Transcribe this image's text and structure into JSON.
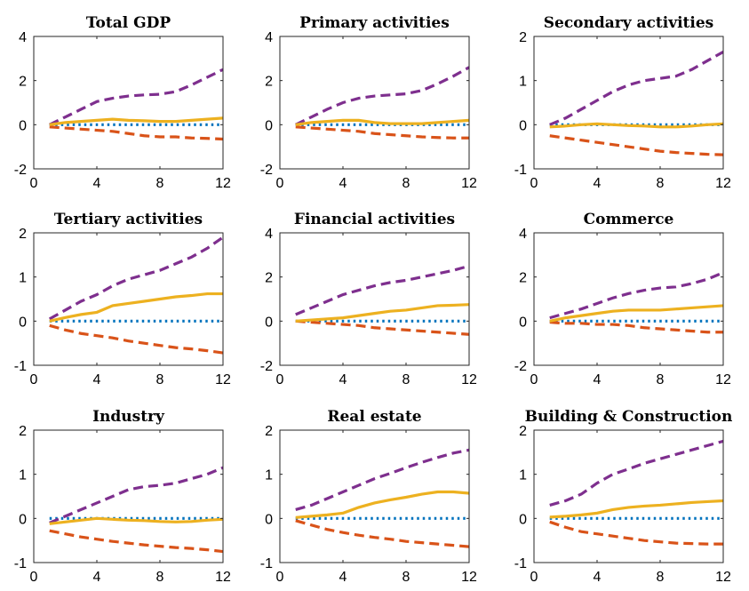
{
  "chart_data": [
    {
      "type": "line",
      "title": "Total GDP",
      "x": [
        1,
        2,
        3,
        4,
        5,
        6,
        7,
        8,
        9,
        10,
        11,
        12
      ],
      "xlim": [
        0,
        12
      ],
      "xticks": [
        0,
        4,
        8,
        12
      ],
      "ylim": [
        -2,
        4
      ],
      "yticks": [
        -2,
        0,
        2,
        4
      ],
      "series": [
        {
          "values": [
            0.0,
            0.35,
            0.7,
            1.05,
            1.2,
            1.3,
            1.35,
            1.38,
            1.5,
            1.8,
            2.15,
            2.5
          ]
        },
        {
          "values": [
            0.0,
            0.1,
            0.15,
            0.2,
            0.25,
            0.2,
            0.18,
            0.15,
            0.15,
            0.2,
            0.25,
            0.3
          ]
        },
        {
          "values": [
            -0.1,
            -0.15,
            -0.2,
            -0.25,
            -0.3,
            -0.4,
            -0.5,
            -0.55,
            -0.55,
            -0.6,
            -0.62,
            -0.65
          ]
        },
        {
          "values": [
            0,
            0,
            0,
            0,
            0,
            0,
            0,
            0,
            0,
            0,
            0,
            0
          ]
        }
      ]
    },
    {
      "type": "line",
      "title": "Primary activities",
      "x": [
        1,
        2,
        3,
        4,
        5,
        6,
        7,
        8,
        9,
        10,
        11,
        12
      ],
      "xlim": [
        0,
        12
      ],
      "xticks": [
        0,
        4,
        8,
        12
      ],
      "ylim": [
        -2,
        4
      ],
      "yticks": [
        -2,
        0,
        2,
        4
      ],
      "series": [
        {
          "values": [
            0.0,
            0.35,
            0.7,
            1.0,
            1.2,
            1.3,
            1.35,
            1.4,
            1.55,
            1.85,
            2.2,
            2.6
          ]
        },
        {
          "values": [
            0.0,
            0.1,
            0.15,
            0.2,
            0.2,
            0.1,
            0.05,
            0.05,
            0.05,
            0.1,
            0.15,
            0.2
          ]
        },
        {
          "values": [
            -0.1,
            -0.15,
            -0.2,
            -0.25,
            -0.3,
            -0.4,
            -0.45,
            -0.5,
            -0.55,
            -0.58,
            -0.6,
            -0.6
          ]
        },
        {
          "values": [
            0,
            0,
            0,
            0,
            0,
            0,
            0,
            0,
            0,
            0,
            0,
            0
          ]
        }
      ]
    },
    {
      "type": "line",
      "title": "Secondary activities",
      "x": [
        1,
        2,
        3,
        4,
        5,
        6,
        7,
        8,
        9,
        10,
        11,
        12
      ],
      "xlim": [
        0,
        12
      ],
      "xticks": [
        0,
        4,
        8,
        12
      ],
      "ylim": [
        -1,
        2
      ],
      "yticks": [
        -1,
        0,
        1,
        2
      ],
      "series": [
        {
          "values": [
            0.0,
            0.15,
            0.35,
            0.55,
            0.75,
            0.9,
            1.0,
            1.05,
            1.1,
            1.25,
            1.45,
            1.65
          ]
        },
        {
          "values": [
            -0.05,
            -0.03,
            0.0,
            0.02,
            0.0,
            -0.02,
            -0.03,
            -0.05,
            -0.05,
            -0.03,
            0.0,
            0.02
          ]
        },
        {
          "values": [
            -0.25,
            -0.3,
            -0.35,
            -0.4,
            -0.45,
            -0.5,
            -0.55,
            -0.6,
            -0.63,
            -0.65,
            -0.67,
            -0.68
          ]
        },
        {
          "values": [
            0,
            0,
            0,
            0,
            0,
            0,
            0,
            0,
            0,
            0,
            0,
            0
          ]
        }
      ]
    },
    {
      "type": "line",
      "title": "Tertiary activities",
      "x": [
        1,
        2,
        3,
        4,
        5,
        6,
        7,
        8,
        9,
        10,
        11,
        12
      ],
      "xlim": [
        0,
        12
      ],
      "xticks": [
        0,
        4,
        8,
        12
      ],
      "ylim": [
        -1,
        2
      ],
      "yticks": [
        -1,
        0,
        1,
        2
      ],
      "series": [
        {
          "values": [
            0.05,
            0.25,
            0.45,
            0.6,
            0.8,
            0.95,
            1.05,
            1.15,
            1.3,
            1.45,
            1.65,
            1.9
          ]
        },
        {
          "values": [
            0.0,
            0.08,
            0.15,
            0.2,
            0.35,
            0.4,
            0.45,
            0.5,
            0.55,
            0.58,
            0.62,
            0.62
          ]
        },
        {
          "values": [
            -0.1,
            -0.2,
            -0.28,
            -0.33,
            -0.38,
            -0.45,
            -0.5,
            -0.55,
            -0.6,
            -0.63,
            -0.67,
            -0.72
          ]
        },
        {
          "values": [
            0,
            0,
            0,
            0,
            0,
            0,
            0,
            0,
            0,
            0,
            0,
            0
          ]
        }
      ]
    },
    {
      "type": "line",
      "title": "Financial activities",
      "x": [
        1,
        2,
        3,
        4,
        5,
        6,
        7,
        8,
        9,
        10,
        11,
        12
      ],
      "xlim": [
        0,
        12
      ],
      "xticks": [
        0,
        4,
        8,
        12
      ],
      "ylim": [
        -2,
        4
      ],
      "yticks": [
        -2,
        0,
        2,
        4
      ],
      "series": [
        {
          "values": [
            0.3,
            0.6,
            0.9,
            1.2,
            1.4,
            1.6,
            1.75,
            1.85,
            2.0,
            2.15,
            2.3,
            2.5
          ]
        },
        {
          "values": [
            0.0,
            0.05,
            0.1,
            0.15,
            0.25,
            0.35,
            0.45,
            0.5,
            0.6,
            0.7,
            0.72,
            0.75
          ]
        },
        {
          "values": [
            0.0,
            -0.05,
            -0.1,
            -0.15,
            -0.2,
            -0.3,
            -0.35,
            -0.4,
            -0.45,
            -0.5,
            -0.55,
            -0.6
          ]
        },
        {
          "values": [
            0,
            0,
            0,
            0,
            0,
            0,
            0,
            0,
            0,
            0,
            0,
            0
          ]
        }
      ]
    },
    {
      "type": "line",
      "title": "Commerce",
      "x": [
        1,
        2,
        3,
        4,
        5,
        6,
        7,
        8,
        9,
        10,
        11,
        12
      ],
      "xlim": [
        0,
        12
      ],
      "xticks": [
        0,
        4,
        8,
        12
      ],
      "ylim": [
        -2,
        4
      ],
      "yticks": [
        -2,
        0,
        2,
        4
      ],
      "series": [
        {
          "values": [
            0.15,
            0.35,
            0.55,
            0.8,
            1.05,
            1.25,
            1.4,
            1.5,
            1.55,
            1.7,
            1.9,
            2.2
          ]
        },
        {
          "values": [
            0.0,
            0.15,
            0.25,
            0.35,
            0.45,
            0.5,
            0.5,
            0.5,
            0.55,
            0.6,
            0.65,
            0.7
          ]
        },
        {
          "values": [
            -0.05,
            -0.1,
            -0.1,
            -0.15,
            -0.15,
            -0.2,
            -0.3,
            -0.35,
            -0.4,
            -0.45,
            -0.5,
            -0.5
          ]
        },
        {
          "values": [
            0,
            0,
            0,
            0,
            0,
            0,
            0,
            0,
            0,
            0,
            0,
            0
          ]
        }
      ]
    },
    {
      "type": "line",
      "title": "Industry",
      "x": [
        1,
        2,
        3,
        4,
        5,
        6,
        7,
        8,
        9,
        10,
        11,
        12
      ],
      "xlim": [
        0,
        12
      ],
      "xticks": [
        0,
        4,
        8,
        12
      ],
      "ylim": [
        -1,
        2
      ],
      "yticks": [
        -1,
        0,
        1,
        2
      ],
      "series": [
        {
          "values": [
            -0.1,
            0.05,
            0.2,
            0.35,
            0.5,
            0.65,
            0.72,
            0.75,
            0.8,
            0.9,
            1.0,
            1.15
          ]
        },
        {
          "values": [
            -0.12,
            -0.08,
            -0.04,
            0.0,
            -0.02,
            -0.04,
            -0.05,
            -0.07,
            -0.08,
            -0.07,
            -0.04,
            -0.02
          ]
        },
        {
          "values": [
            -0.28,
            -0.35,
            -0.42,
            -0.47,
            -0.52,
            -0.56,
            -0.6,
            -0.63,
            -0.66,
            -0.68,
            -0.71,
            -0.75
          ]
        },
        {
          "values": [
            0,
            0,
            0,
            0,
            0,
            0,
            0,
            0,
            0,
            0,
            0,
            0
          ]
        }
      ]
    },
    {
      "type": "line",
      "title": "Real estate",
      "x": [
        1,
        2,
        3,
        4,
        5,
        6,
        7,
        8,
        9,
        10,
        11,
        12
      ],
      "xlim": [
        0,
        12
      ],
      "xticks": [
        0,
        4,
        8,
        12
      ],
      "ylim": [
        -1,
        2
      ],
      "yticks": [
        -1,
        0,
        1,
        2
      ],
      "series": [
        {
          "values": [
            0.2,
            0.3,
            0.45,
            0.6,
            0.75,
            0.9,
            1.02,
            1.15,
            1.27,
            1.38,
            1.48,
            1.55
          ]
        },
        {
          "values": [
            0.02,
            0.05,
            0.08,
            0.12,
            0.25,
            0.35,
            0.42,
            0.48,
            0.55,
            0.6,
            0.6,
            0.57
          ]
        },
        {
          "values": [
            -0.05,
            -0.15,
            -0.25,
            -0.32,
            -0.38,
            -0.43,
            -0.47,
            -0.52,
            -0.55,
            -0.58,
            -0.61,
            -0.64
          ]
        },
        {
          "values": [
            0,
            0,
            0,
            0,
            0,
            0,
            0,
            0,
            0,
            0,
            0,
            0
          ]
        }
      ]
    },
    {
      "type": "line",
      "title": "Building & Construction",
      "x": [
        1,
        2,
        3,
        4,
        5,
        6,
        7,
        8,
        9,
        10,
        11,
        12
      ],
      "xlim": [
        0,
        12
      ],
      "xticks": [
        0,
        4,
        8,
        12
      ],
      "ylim": [
        -1,
        2
      ],
      "yticks": [
        -1,
        0,
        1,
        2
      ],
      "series": [
        {
          "values": [
            0.3,
            0.4,
            0.55,
            0.8,
            1.0,
            1.12,
            1.25,
            1.35,
            1.45,
            1.55,
            1.65,
            1.75
          ]
        },
        {
          "values": [
            0.03,
            0.05,
            0.08,
            0.12,
            0.2,
            0.25,
            0.28,
            0.3,
            0.33,
            0.36,
            0.38,
            0.4
          ]
        },
        {
          "values": [
            -0.08,
            -0.2,
            -0.3,
            -0.35,
            -0.4,
            -0.45,
            -0.5,
            -0.53,
            -0.56,
            -0.57,
            -0.58,
            -0.58
          ]
        },
        {
          "values": [
            0,
            0,
            0,
            0,
            0,
            0,
            0,
            0,
            0,
            0,
            0,
            0
          ]
        }
      ]
    }
  ],
  "colors": {
    "upper_band": "#7E2F8E",
    "response": "#EDB120",
    "lower_band": "#D95319",
    "zero_line": "#0072BD"
  }
}
